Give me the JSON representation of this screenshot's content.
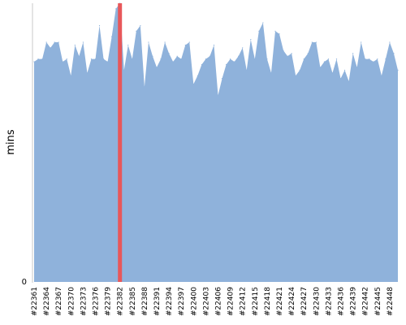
{
  "chart_data": {
    "type": "area",
    "ylabel": "mins",
    "y_tick_labels": [
      "0"
    ],
    "ylim": [
      0,
      100
    ],
    "x": [
      22361,
      22362,
      22363,
      22364,
      22365,
      22366,
      22367,
      22368,
      22369,
      22370,
      22371,
      22372,
      22373,
      22374,
      22375,
      22376,
      22377,
      22378,
      22379,
      22380,
      22381,
      22382,
      22383,
      22384,
      22385,
      22386,
      22387,
      22388,
      22389,
      22390,
      22391,
      22392,
      22393,
      22394,
      22395,
      22396,
      22397,
      22398,
      22399,
      22400,
      22401,
      22402,
      22403,
      22404,
      22405,
      22406,
      22407,
      22408,
      22409,
      22410,
      22411,
      22412,
      22413,
      22414,
      22415,
      22416,
      22417,
      22418,
      22419,
      22420,
      22421,
      22422,
      22423,
      22424,
      22425,
      22426,
      22427,
      22428,
      22429,
      22430,
      22431,
      22432,
      22433,
      22434,
      22435,
      22436,
      22437,
      22438,
      22439,
      22440,
      22441,
      22442,
      22443,
      22444,
      22445,
      22446,
      22447,
      22448,
      22449,
      22450
    ],
    "x_tick_labels": [
      "#22361",
      "#22364",
      "#22367",
      "#22370",
      "#22373",
      "#22376",
      "#22379",
      "#22382",
      "#22385",
      "#22388",
      "#22391",
      "#22394",
      "#22397",
      "#22400",
      "#22403",
      "#22406",
      "#22409",
      "#22412",
      "#22415",
      "#22418",
      "#22421",
      "#22424",
      "#22427",
      "#22430",
      "#22433",
      "#22436",
      "#22439",
      "#22442",
      "#22445",
      "#22448"
    ],
    "values": [
      79,
      80,
      80,
      86,
      84,
      86,
      86,
      79,
      80,
      74,
      85,
      81,
      86,
      75,
      80,
      80,
      92,
      80,
      79,
      88,
      98,
      100,
      76,
      85,
      80,
      90,
      92,
      70,
      86,
      81,
      77,
      80,
      86,
      82,
      79,
      81,
      80,
      85,
      86,
      71,
      74,
      78,
      80,
      81,
      85,
      67,
      73,
      78,
      80,
      79,
      81,
      84,
      76,
      87,
      80,
      90,
      93,
      80,
      75,
      90,
      89,
      83,
      81,
      82,
      74,
      76,
      80,
      82,
      86,
      86,
      77,
      79,
      80,
      75,
      80,
      73,
      76,
      72,
      82,
      77,
      86,
      80,
      80,
      79,
      80,
      74,
      80,
      86,
      82,
      76
    ],
    "marker": {
      "x": 22382,
      "color": "#e8575a"
    },
    "fill_color": "#8fb2db",
    "grid": false
  }
}
